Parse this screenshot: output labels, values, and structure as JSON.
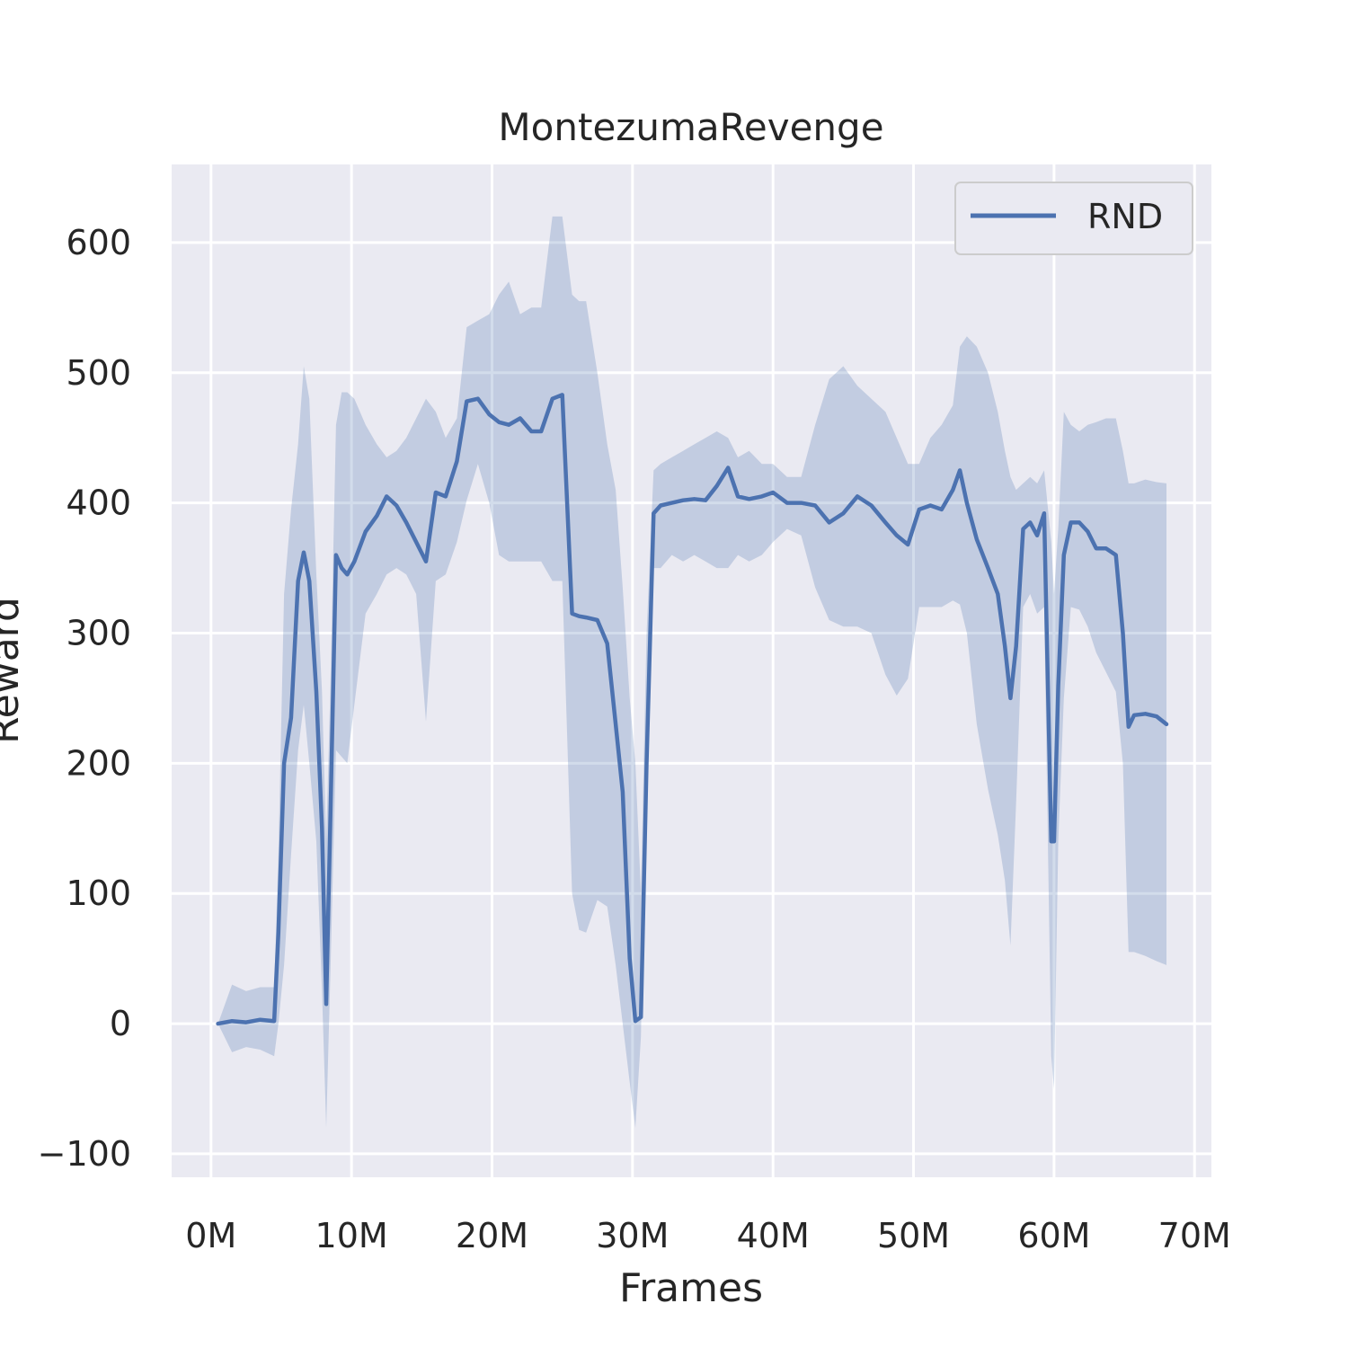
{
  "chart_data": {
    "type": "line",
    "title": "MontezumaRevenge",
    "xlabel": "Frames",
    "ylabel": "Reward",
    "xlim": [
      -2800000,
      71200000
    ],
    "ylim": [
      -118,
      660
    ],
    "grid": true,
    "legend_position": "top-right",
    "x_ticks": [
      0,
      10000000,
      20000000,
      30000000,
      40000000,
      50000000,
      60000000,
      70000000
    ],
    "x_tick_labels": [
      "0M",
      "10M",
      "20M",
      "30M",
      "40M",
      "50M",
      "60M",
      "70M"
    ],
    "y_ticks": [
      -100,
      0,
      100,
      200,
      300,
      400,
      500,
      600
    ],
    "y_tick_labels": [
      "−100",
      "0",
      "100",
      "200",
      "300",
      "400",
      "500",
      "600"
    ],
    "colors": {
      "line": "#4c72b0",
      "band": "#4c72b0",
      "background": "#eaeaf2",
      "grid": "#ffffff"
    },
    "series": [
      {
        "name": "RND",
        "x": [
          500000,
          1500000,
          2500000,
          3500000,
          4500000,
          4800000,
          5200000,
          5700000,
          6200000,
          6600000,
          7000000,
          7500000,
          7900000,
          8200000,
          8500000,
          8900000,
          9300000,
          9700000,
          10200000,
          11000000,
          11800000,
          12500000,
          13200000,
          13900000,
          14600000,
          15300000,
          16000000,
          16700000,
          17500000,
          18200000,
          19000000,
          19800000,
          20500000,
          21200000,
          22000000,
          22800000,
          23500000,
          24300000,
          25000000,
          25700000,
          26200000,
          26700000,
          27500000,
          28200000,
          28800000,
          29300000,
          29800000,
          30200000,
          30600000,
          31000000,
          31500000,
          32000000,
          32800000,
          33600000,
          34400000,
          35200000,
          36000000,
          36800000,
          37500000,
          38300000,
          39200000,
          40000000,
          41000000,
          42000000,
          43000000,
          44000000,
          45000000,
          46000000,
          47000000,
          48000000,
          48800000,
          49600000,
          50400000,
          51200000,
          52000000,
          52800000,
          53300000,
          53800000,
          54500000,
          55300000,
          56000000,
          56500000,
          56900000,
          57300000,
          57800000,
          58300000,
          58800000,
          59300000,
          59800000,
          60000000,
          60300000,
          60700000,
          61200000,
          61800000,
          62400000,
          63000000,
          63700000,
          64400000,
          64900000,
          65300000,
          65700000,
          66500000,
          67300000,
          68000000
        ],
        "values": [
          0,
          2,
          1,
          3,
          2,
          70,
          200,
          235,
          340,
          362,
          340,
          255,
          150,
          15,
          160,
          360,
          350,
          345,
          355,
          378,
          390,
          405,
          398,
          385,
          370,
          355,
          408,
          405,
          432,
          478,
          480,
          468,
          462,
          460,
          465,
          455,
          455,
          480,
          483,
          315,
          313,
          312,
          310,
          292,
          230,
          178,
          50,
          2,
          5,
          200,
          392,
          398,
          400,
          402,
          403,
          402,
          413,
          427,
          405,
          403,
          405,
          408,
          400,
          400,
          398,
          385,
          392,
          405,
          398,
          385,
          375,
          368,
          395,
          398,
          395,
          410,
          425,
          400,
          372,
          350,
          330,
          290,
          250,
          290,
          380,
          385,
          375,
          392,
          140,
          140,
          260,
          360,
          385,
          385,
          378,
          365,
          365,
          360,
          300,
          228,
          237,
          238,
          236,
          230
        ],
        "lower": [
          0,
          -22,
          -18,
          -20,
          -25,
          0,
          45,
          130,
          210,
          245,
          200,
          140,
          25,
          -80,
          40,
          210,
          205,
          200,
          245,
          315,
          330,
          345,
          350,
          345,
          330,
          232,
          340,
          345,
          370,
          402,
          430,
          400,
          360,
          355,
          355,
          355,
          355,
          340,
          340,
          100,
          72,
          70,
          95,
          90,
          45,
          0,
          -45,
          -80,
          -10,
          220,
          350,
          350,
          360,
          355,
          360,
          355,
          350,
          350,
          360,
          355,
          360,
          370,
          380,
          375,
          335,
          310,
          305,
          305,
          300,
          268,
          252,
          265,
          320,
          320,
          320,
          325,
          322,
          300,
          230,
          180,
          145,
          110,
          60,
          170,
          320,
          330,
          315,
          320,
          -25,
          -50,
          140,
          250,
          320,
          318,
          305,
          285,
          270,
          255,
          200,
          55,
          55,
          52,
          48,
          45
        ],
        "upper": [
          0,
          30,
          25,
          28,
          28,
          130,
          330,
          395,
          445,
          505,
          480,
          345,
          255,
          140,
          260,
          460,
          485,
          485,
          480,
          460,
          445,
          435,
          440,
          450,
          465,
          480,
          470,
          450,
          465,
          535,
          540,
          545,
          560,
          570,
          545,
          550,
          550,
          620,
          620,
          560,
          555,
          555,
          500,
          445,
          410,
          335,
          250,
          200,
          100,
          300,
          425,
          430,
          435,
          440,
          445,
          450,
          455,
          450,
          435,
          440,
          430,
          430,
          420,
          420,
          460,
          495,
          505,
          490,
          480,
          470,
          450,
          430,
          430,
          450,
          460,
          475,
          520,
          528,
          520,
          500,
          470,
          440,
          420,
          410,
          415,
          420,
          415,
          425,
          370,
          330,
          380,
          470,
          460,
          455,
          460,
          462,
          465,
          465,
          440,
          415,
          415,
          418,
          416,
          415
        ]
      }
    ]
  }
}
